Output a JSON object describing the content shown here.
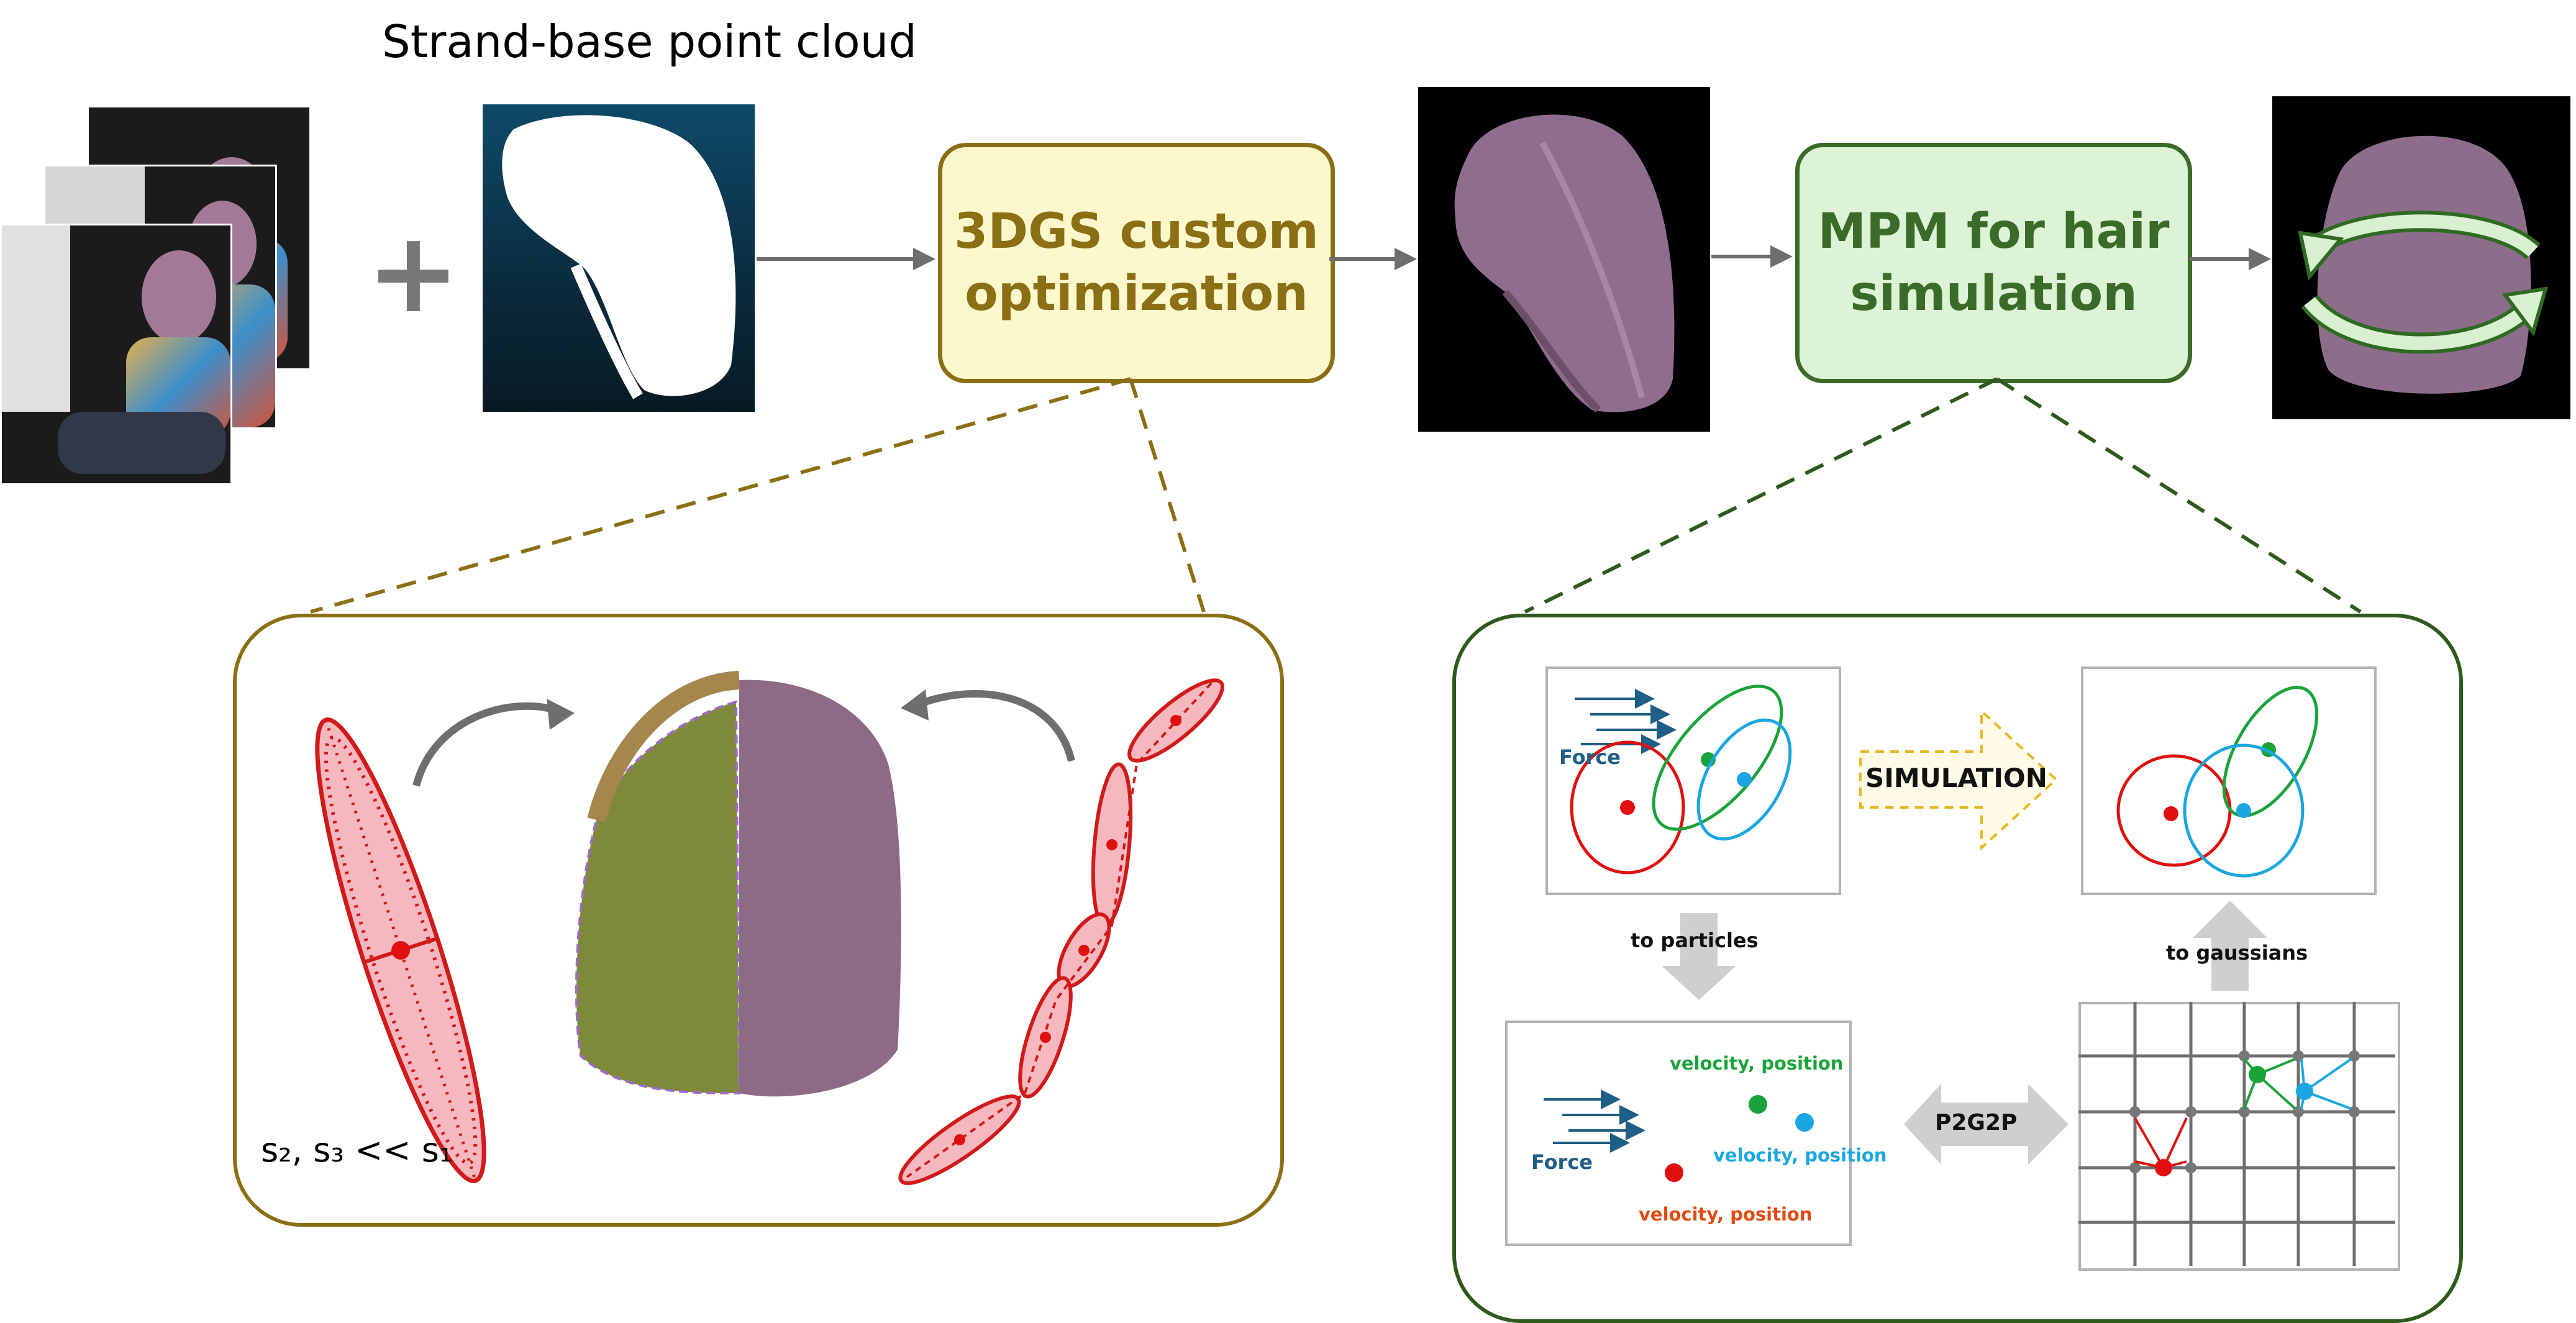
{
  "header": {
    "point_cloud_title": "Strand-base point cloud"
  },
  "stages": {
    "gaussian": {
      "line1": "3DGS custom",
      "line2": "optimization"
    },
    "mpm": {
      "line1": "MPM for hair",
      "line2": "simulation"
    }
  },
  "left_panel": {
    "scale_relation": "s₂, s₃ << s₁"
  },
  "right_panel": {
    "force_top": "Force",
    "simulation_label": "SIMULATION",
    "to_particles": "to particles",
    "to_gaussians": "to gaussians",
    "p2g2p": "P2G2P",
    "force_bottom": "Force",
    "velocity_green": "velocity, position",
    "velocity_blue": "velocity, position",
    "velocity_red": "velocity, position"
  },
  "colors": {
    "gaussian_accent": "#8b6f14",
    "gaussian_fill": "#fdf7cc",
    "mpm_accent": "#3b6b28",
    "mpm_fill": "#dcf3d6",
    "red": "#e01010",
    "green": "#19a33a",
    "blue": "#1aa6e0",
    "arrow_gray": "#6e6e6e"
  },
  "icons": [
    "plus-icon",
    "curved-arrow-icon",
    "hair-image",
    "camera-photo"
  ]
}
